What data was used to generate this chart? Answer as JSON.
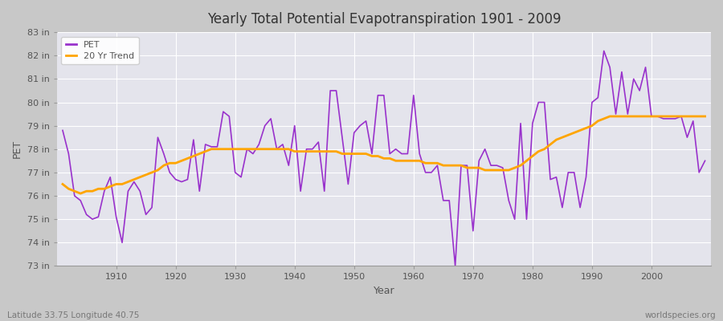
{
  "title": "Yearly Total Potential Evapotranspiration 1901 - 2009",
  "xlabel": "Year",
  "ylabel": "PET",
  "subtitle_left": "Latitude 33.75 Longitude 40.75",
  "subtitle_right": "worldspecies.org",
  "ylim": [
    73,
    83
  ],
  "xlim": [
    1901,
    2009
  ],
  "yticks": [
    73,
    74,
    75,
    76,
    77,
    78,
    79,
    80,
    81,
    82,
    83
  ],
  "ytick_labels": [
    "73 in",
    "74 in",
    "75 in",
    "76 in",
    "77 in",
    "78 in",
    "79 in",
    "80 in",
    "81 in",
    "82 in",
    "83 in"
  ],
  "xticks": [
    1910,
    1920,
    1930,
    1940,
    1950,
    1960,
    1970,
    1980,
    1990,
    2000
  ],
  "pet_color": "#9932CC",
  "trend_color": "#FFA500",
  "fig_bg_color": "#C8C8C8",
  "plot_bg_color": "#E0E0E8",
  "grid_color": "#FFFFFF",
  "legend_labels": [
    "PET",
    "20 Yr Trend"
  ],
  "years": [
    1901,
    1902,
    1903,
    1904,
    1905,
    1906,
    1907,
    1908,
    1909,
    1910,
    1911,
    1912,
    1913,
    1914,
    1915,
    1916,
    1917,
    1918,
    1919,
    1920,
    1921,
    1922,
    1923,
    1924,
    1925,
    1926,
    1927,
    1928,
    1929,
    1930,
    1931,
    1932,
    1933,
    1934,
    1935,
    1936,
    1937,
    1938,
    1939,
    1940,
    1941,
    1942,
    1943,
    1944,
    1945,
    1946,
    1947,
    1948,
    1949,
    1950,
    1951,
    1952,
    1953,
    1954,
    1955,
    1956,
    1957,
    1958,
    1959,
    1960,
    1961,
    1962,
    1963,
    1964,
    1965,
    1966,
    1967,
    1968,
    1969,
    1970,
    1971,
    1972,
    1973,
    1974,
    1975,
    1976,
    1977,
    1978,
    1979,
    1980,
    1981,
    1982,
    1983,
    1984,
    1985,
    1986,
    1987,
    1988,
    1989,
    1990,
    1991,
    1992,
    1993,
    1994,
    1995,
    1996,
    1997,
    1998,
    1999,
    2000,
    2001,
    2002,
    2003,
    2004,
    2005,
    2006,
    2007,
    2008,
    2009
  ],
  "pet_values": [
    78.8,
    77.8,
    76.0,
    75.8,
    75.2,
    75.0,
    75.1,
    76.2,
    76.8,
    75.1,
    74.0,
    76.2,
    76.6,
    76.2,
    75.2,
    75.5,
    78.5,
    77.8,
    77.0,
    76.7,
    76.6,
    76.7,
    78.4,
    76.2,
    78.2,
    78.1,
    78.1,
    79.6,
    79.4,
    77.0,
    76.8,
    78.0,
    77.8,
    78.2,
    79.0,
    79.3,
    78.0,
    78.2,
    77.3,
    79.0,
    76.2,
    78.0,
    78.0,
    78.3,
    76.2,
    80.5,
    80.5,
    78.5,
    76.5,
    78.7,
    79.0,
    79.2,
    77.8,
    80.3,
    80.3,
    77.8,
    78.0,
    77.8,
    77.8,
    80.3,
    77.8,
    77.0,
    77.0,
    77.3,
    75.8,
    75.8,
    73.0,
    77.3,
    77.3,
    74.5,
    77.5,
    78.0,
    77.3,
    77.3,
    77.2,
    75.8,
    75.0,
    79.1,
    75.0,
    79.1,
    80.0,
    80.0,
    76.7,
    76.8,
    75.5,
    77.0,
    77.0,
    75.5,
    76.8,
    80.0,
    80.2,
    82.2,
    81.5,
    79.5,
    81.3,
    79.5,
    81.0,
    80.5,
    81.5,
    79.4,
    79.4,
    79.3,
    79.3,
    79.3,
    79.4,
    78.5,
    79.2,
    77.0,
    77.5
  ],
  "trend_years": [
    1901,
    1902,
    1903,
    1904,
    1905,
    1906,
    1907,
    1908,
    1909,
    1910,
    1911,
    1912,
    1913,
    1914,
    1915,
    1916,
    1917,
    1918,
    1919,
    1920,
    1921,
    1922,
    1923,
    1924,
    1925,
    1926,
    1927,
    1928,
    1929,
    1930,
    1931,
    1932,
    1933,
    1934,
    1935,
    1936,
    1937,
    1938,
    1939,
    1940,
    1941,
    1942,
    1943,
    1944,
    1945,
    1946,
    1947,
    1948,
    1949,
    1950,
    1951,
    1952,
    1953,
    1954,
    1955,
    1956,
    1957,
    1958,
    1959,
    1960,
    1961,
    1962,
    1963,
    1964,
    1965,
    1966,
    1967,
    1968,
    1969,
    1970,
    1971,
    1972,
    1973,
    1974,
    1975,
    1976,
    1977,
    1978,
    1979,
    1980,
    1981,
    1982,
    1983,
    1984,
    1985,
    1986,
    1987,
    1988,
    1989,
    1990,
    1991,
    1992,
    1993,
    1994,
    1995,
    1996,
    1997,
    1998,
    1999,
    2000,
    2001,
    2002,
    2003,
    2004,
    2005,
    2006,
    2007,
    2008,
    2009
  ],
  "trend_values": [
    76.5,
    76.3,
    76.2,
    76.1,
    76.2,
    76.2,
    76.3,
    76.3,
    76.4,
    76.5,
    76.5,
    76.6,
    76.7,
    76.8,
    76.9,
    77.0,
    77.1,
    77.3,
    77.4,
    77.4,
    77.5,
    77.6,
    77.7,
    77.8,
    77.9,
    78.0,
    78.0,
    78.0,
    78.0,
    78.0,
    78.0,
    78.0,
    78.0,
    78.0,
    78.0,
    78.0,
    78.0,
    78.0,
    78.0,
    77.9,
    77.9,
    77.9,
    77.9,
    77.9,
    77.9,
    77.9,
    77.9,
    77.8,
    77.8,
    77.8,
    77.8,
    77.8,
    77.7,
    77.7,
    77.6,
    77.6,
    77.5,
    77.5,
    77.5,
    77.5,
    77.5,
    77.4,
    77.4,
    77.4,
    77.3,
    77.3,
    77.3,
    77.3,
    77.2,
    77.2,
    77.2,
    77.1,
    77.1,
    77.1,
    77.1,
    77.1,
    77.2,
    77.3,
    77.5,
    77.7,
    77.9,
    78.0,
    78.2,
    78.4,
    78.5,
    78.6,
    78.7,
    78.8,
    78.9,
    79.0,
    79.2,
    79.3,
    79.4,
    79.4,
    79.4,
    79.4,
    79.4,
    79.4,
    79.4,
    79.4,
    79.4,
    79.4,
    79.4,
    79.4,
    79.4,
    79.4,
    79.4,
    79.4,
    79.4
  ]
}
